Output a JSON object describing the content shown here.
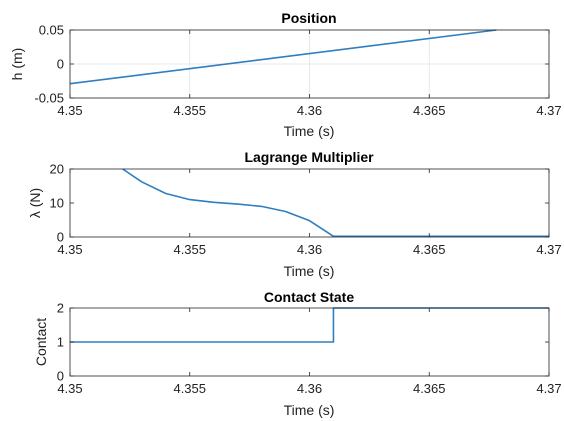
{
  "chart_data": [
    {
      "type": "line",
      "title": "Position",
      "xlabel": "Time (s)",
      "ylabel": "h (m)",
      "xlim": [
        4.35,
        4.37
      ],
      "ylim": [
        -0.05,
        0.05
      ],
      "xticks": [
        4.35,
        4.355,
        4.36,
        4.365,
        4.37
      ],
      "xtick_labels": [
        "4.35",
        "4.355",
        "4.36",
        "4.365",
        "4.37"
      ],
      "yticks": [
        -0.05,
        0,
        0.05
      ],
      "ytick_labels": [
        "-0.05",
        "0",
        "0.05"
      ],
      "grid": true,
      "series": [
        {
          "color": "#2E7EC1",
          "x": [
            4.35,
            4.3678
          ],
          "y": [
            -0.029,
            0.05
          ]
        }
      ]
    },
    {
      "type": "line",
      "title": "Lagrange Multiplier",
      "xlabel": "Time (s)",
      "ylabel": "λ (N)",
      "xlim": [
        4.35,
        4.37
      ],
      "ylim": [
        0,
        20
      ],
      "xticks": [
        4.35,
        4.355,
        4.36,
        4.365,
        4.37
      ],
      "xtick_labels": [
        "4.35",
        "4.355",
        "4.36",
        "4.365",
        "4.37"
      ],
      "yticks": [
        0,
        10,
        20
      ],
      "ytick_labels": [
        "0",
        "10",
        "20"
      ],
      "grid": false,
      "series": [
        {
          "color": "#2E7EC1",
          "x": [
            4.3522,
            4.353,
            4.354,
            4.355,
            4.356,
            4.357,
            4.358,
            4.359,
            4.36,
            4.361,
            4.37
          ],
          "y": [
            20,
            16.2,
            12.8,
            11.0,
            10.2,
            9.7,
            9.0,
            7.5,
            4.8,
            0.2,
            0.2
          ]
        }
      ]
    },
    {
      "type": "line",
      "title": "Contact State",
      "xlabel": "Time (s)",
      "ylabel": "Contact",
      "xlim": [
        4.35,
        4.37
      ],
      "ylim": [
        0,
        2
      ],
      "xticks": [
        4.35,
        4.355,
        4.36,
        4.365,
        4.37
      ],
      "xtick_labels": [
        "4.35",
        "4.355",
        "4.36",
        "4.365",
        "4.37"
      ],
      "yticks": [
        0,
        1,
        2
      ],
      "ytick_labels": [
        "0",
        "1",
        "2"
      ],
      "grid": false,
      "series": [
        {
          "color": "#2E7EC1",
          "x": [
            4.35,
            4.361,
            4.361,
            4.37
          ],
          "y": [
            1,
            1,
            2,
            2
          ]
        }
      ]
    }
  ]
}
